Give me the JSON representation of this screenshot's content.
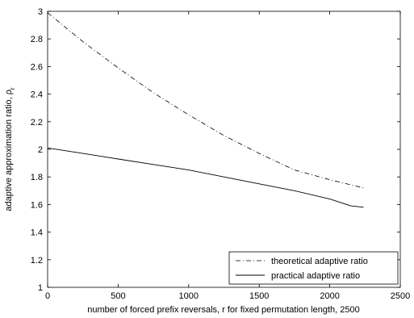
{
  "chart_data": {
    "type": "line",
    "xlabel": "number of forced prefix reversals, r for fixed permutation length, 2500",
    "ylabel_main": "adaptive approximation ratio, ρ",
    "ylabel_sub": "r",
    "xlim": [
      0,
      2500
    ],
    "ylim": [
      1,
      3
    ],
    "xticks": [
      0,
      500,
      1000,
      1500,
      2000,
      2500
    ],
    "yticks": [
      1,
      1.2,
      1.4,
      1.6,
      1.8,
      2,
      2.2,
      2.4,
      2.6,
      2.8,
      3
    ],
    "grid": false,
    "legend_position": "bottom-right",
    "series": [
      {
        "name": "theoretical adaptive ratio",
        "style": "dash-dot",
        "color": "#000000",
        "x": [
          0,
          250,
          500,
          750,
          1000,
          1250,
          1500,
          1750,
          2000,
          2240
        ],
        "y": [
          2.99,
          2.78,
          2.59,
          2.41,
          2.25,
          2.1,
          1.97,
          1.85,
          1.78,
          1.72
        ]
      },
      {
        "name": "practical adaptive ratio",
        "style": "solid",
        "color": "#000000",
        "x": [
          0,
          250,
          500,
          750,
          1000,
          1250,
          1500,
          1750,
          2000,
          2150,
          2240
        ],
        "y": [
          2.01,
          1.97,
          1.93,
          1.89,
          1.85,
          1.8,
          1.75,
          1.7,
          1.64,
          1.59,
          1.58
        ]
      }
    ]
  }
}
